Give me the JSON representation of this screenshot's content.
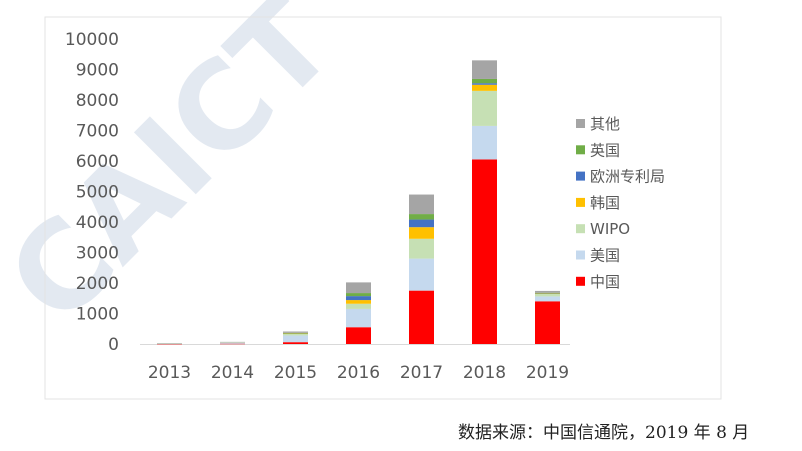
{
  "watermark": {
    "text": "CAICT 中国信通院",
    "color": "#aebfd8"
  },
  "source_note": "数据来源：中国信通院，2019 年 8 月",
  "chart_data": {
    "type": "bar",
    "stacked": true,
    "categories": [
      "2013",
      "2014",
      "2015",
      "2016",
      "2017",
      "2018",
      "2019"
    ],
    "ylim": [
      0,
      10000
    ],
    "yticks": [
      "0",
      "1000",
      "2000",
      "3000",
      "4000",
      "5000",
      "6000",
      "7000",
      "8000",
      "9000",
      "10000"
    ],
    "grid": false,
    "legend_position": "right",
    "series": [
      {
        "name": "中国",
        "color": "#ff0000",
        "values": [
          5,
          10,
          60,
          550,
          1750,
          6050,
          1400
        ]
      },
      {
        "name": "美国",
        "color": "#c5d9ee",
        "values": [
          10,
          30,
          220,
          600,
          1050,
          1100,
          160
        ]
      },
      {
        "name": "WIPO",
        "color": "#c6e0b4",
        "values": [
          5,
          20,
          60,
          170,
          650,
          1150,
          90
        ]
      },
      {
        "name": "韩国",
        "color": "#ffc000",
        "values": [
          0,
          0,
          10,
          120,
          380,
          200,
          10
        ]
      },
      {
        "name": "欧洲专利局",
        "color": "#4472c4",
        "values": [
          0,
          0,
          10,
          130,
          250,
          50,
          10
        ]
      },
      {
        "name": "英国",
        "color": "#70ad47",
        "values": [
          0,
          0,
          5,
          100,
          180,
          140,
          10
        ]
      },
      {
        "name": "其他",
        "color": "#a5a5a5",
        "values": [
          5,
          10,
          45,
          350,
          640,
          610,
          60
        ]
      }
    ],
    "legend_order": [
      "其他",
      "英国",
      "欧洲专利局",
      "韩国",
      "WIPO",
      "美国",
      "中国"
    ]
  }
}
